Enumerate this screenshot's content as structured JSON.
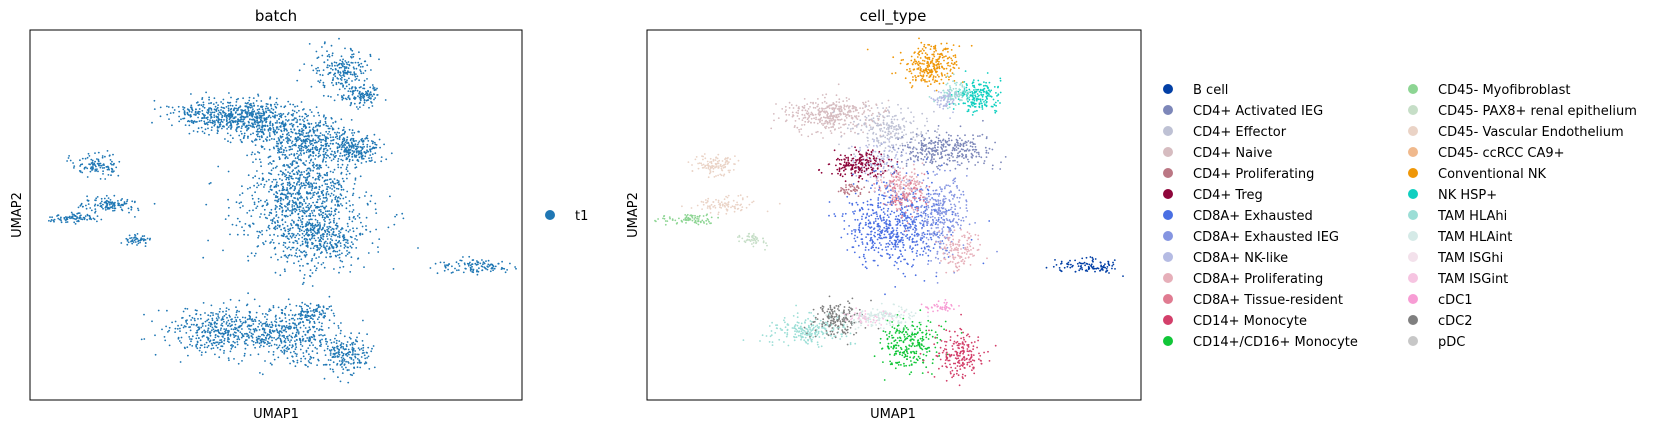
{
  "chart_data": [
    {
      "type": "scatter",
      "title": "batch",
      "xlabel": "UMAP1",
      "ylabel": "UMAP2",
      "grid": false,
      "legend": "right",
      "series": [
        {
          "name": "t1",
          "color": "#1f77b4"
        }
      ]
    },
    {
      "type": "scatter",
      "title": "cell_type",
      "xlabel": "UMAP1",
      "ylabel": "UMAP2",
      "grid": false,
      "legend": "right, two columns",
      "series": [
        {
          "name": "B cell",
          "color": "#023fa5"
        },
        {
          "name": "CD4+ Activated IEG",
          "color": "#7d87b9"
        },
        {
          "name": "CD4+ Effector",
          "color": "#bec1d4"
        },
        {
          "name": "CD4+ Naive",
          "color": "#d6bcc0"
        },
        {
          "name": "CD4+ Proliferating",
          "color": "#bb7784"
        },
        {
          "name": "CD4+ Treg",
          "color": "#8e063b"
        },
        {
          "name": "CD8A+ Exhausted",
          "color": "#4a6fe3"
        },
        {
          "name": "CD8A+ Exhausted IEG",
          "color": "#8595e1"
        },
        {
          "name": "CD8A+ NK-like",
          "color": "#b5bbe3"
        },
        {
          "name": "CD8A+ Proliferating",
          "color": "#e6afb9"
        },
        {
          "name": "CD8A+ Tissue-resident",
          "color": "#e07b91"
        },
        {
          "name": "CD14+ Monocyte",
          "color": "#d33f6a"
        },
        {
          "name": "CD14+/CD16+ Monocyte",
          "color": "#11c638"
        },
        {
          "name": "CD45- Myofibroblast",
          "color": "#8dd593"
        },
        {
          "name": "CD45- PAX8+ renal epithelium",
          "color": "#c6dec7"
        },
        {
          "name": "CD45- Vascular Endothelium",
          "color": "#ead3c6"
        },
        {
          "name": "CD45- ccRCC CA9+",
          "color": "#f0b98d"
        },
        {
          "name": "Conventional NK",
          "color": "#ef9708"
        },
        {
          "name": "NK HSP+",
          "color": "#0fcfc0"
        },
        {
          "name": "TAM HLAhi",
          "color": "#9cded6"
        },
        {
          "name": "TAM HLAint",
          "color": "#d5eae7"
        },
        {
          "name": "TAM ISGhi",
          "color": "#f3e1eb"
        },
        {
          "name": "TAM ISGint",
          "color": "#f6c4e1"
        },
        {
          "name": "cDC1",
          "color": "#f79cd4"
        },
        {
          "name": "cDC2",
          "color": "#7f7f7f"
        },
        {
          "name": "pDC",
          "color": "#c7c7c7"
        }
      ]
    }
  ]
}
